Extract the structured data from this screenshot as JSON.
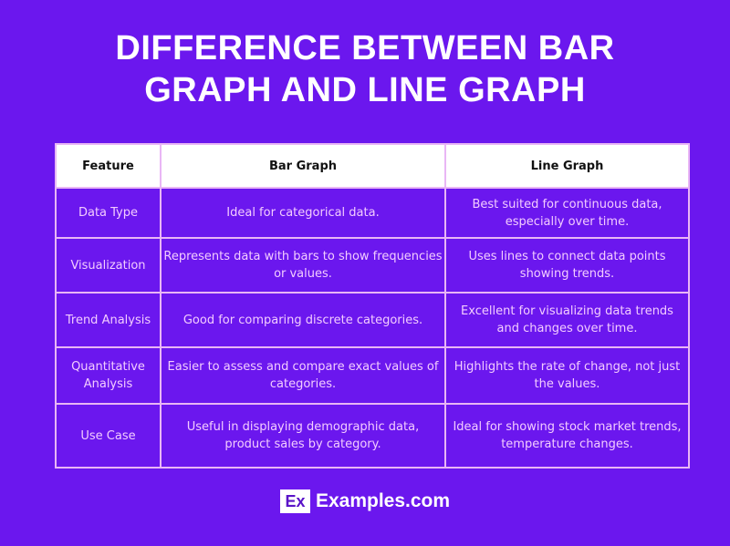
{
  "title_line1": "DIFFERENCE BETWEEN BAR",
  "title_line2": "GRAPH AND LINE GRAPH",
  "table": {
    "headers": [
      "Feature",
      "Bar Graph",
      "Line Graph"
    ],
    "rows": [
      [
        "Data Type",
        "Ideal for categorical data.",
        "Best suited for continuous data, especially over time."
      ],
      [
        "Visualization",
        "Represents data with bars to show frequencies or values.",
        "Uses lines to connect data points showing trends."
      ],
      [
        "Trend Analysis",
        "Good for comparing discrete categories.",
        "Excellent for visualizing data trends and changes over time."
      ],
      [
        "Quantitative Analysis",
        "Easier to assess and compare exact values of categories.",
        "Highlights the rate of change, not just the values."
      ],
      [
        "Use Case",
        "Useful in displaying demographic data, product sales by category.",
        "Ideal for showing stock market trends, temperature changes."
      ]
    ]
  },
  "footer": {
    "logo": "Ex",
    "brand": "Examples.com"
  },
  "colors": {
    "background": "#6b17ee",
    "cell_text": "#f3ccff",
    "border": "#e9b6f5"
  }
}
